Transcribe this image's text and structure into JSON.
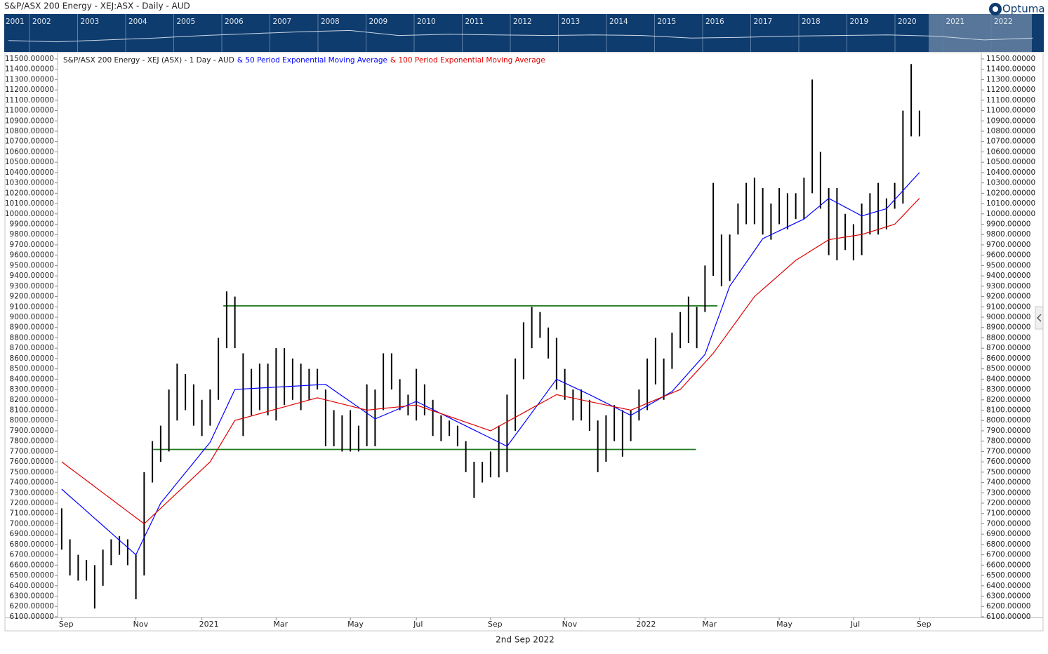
{
  "window_title": "S&P/ASX 200 Energy - XEJ:ASX - Daily - AUD",
  "brand": "Optuma",
  "footer_date": "2nd Sep 2022",
  "navigator": {
    "years": [
      "2001",
      "2002",
      "2003",
      "2004",
      "2005",
      "2006",
      "2007",
      "2008",
      "2009",
      "2010",
      "2011",
      "2012",
      "2013",
      "2014",
      "2015",
      "2016",
      "2017",
      "2018",
      "2019",
      "2020",
      "2021",
      "2022"
    ],
    "values": [
      9000,
      8000,
      9500,
      11000,
      13000,
      14500,
      16000,
      17000,
      13000,
      14000,
      13500,
      13000,
      13500,
      13000,
      11000,
      11500,
      12500,
      13000,
      13500,
      12500,
      9500,
      11000
    ],
    "ylim": [
      0,
      30000
    ]
  },
  "chart_data": {
    "type": "range-bar",
    "categories": [
      "Sep",
      null,
      null,
      null,
      null,
      null,
      null,
      null,
      null,
      "Nov",
      null,
      null,
      null,
      null,
      null,
      null,
      null,
      "2021",
      null,
      null,
      null,
      null,
      null,
      null,
      null,
      null,
      "Mar",
      null,
      null,
      null,
      null,
      null,
      null,
      null,
      null,
      "May",
      null,
      null,
      null,
      null,
      null,
      null,
      null,
      "Jul",
      null,
      null,
      null,
      null,
      null,
      null,
      null,
      null,
      "Sep",
      null,
      null,
      null,
      null,
      null,
      null,
      null,
      null,
      "Nov",
      null,
      null,
      null,
      null,
      null,
      null,
      null,
      null,
      "2022",
      null,
      null,
      null,
      null,
      null,
      null,
      null,
      "Mar",
      null,
      null,
      null,
      null,
      null,
      null,
      null,
      null,
      "May",
      null,
      null,
      null,
      null,
      null,
      null,
      null,
      null,
      "Jul",
      null,
      null,
      null,
      null,
      null,
      null,
      null,
      "Sep",
      null,
      null,
      null,
      null,
      null,
      null,
      null
    ],
    "series": [
      {
        "name": "S&P/ASX 200 Energy - XEJ (ASX) - 1 Day - AUD",
        "color": "#000000",
        "high": [
          7150,
          6850,
          6700,
          6650,
          6600,
          6750,
          6850,
          6880,
          6850,
          6700,
          7500,
          7800,
          7950,
          8300,
          8550,
          8450,
          8350,
          8200,
          8300,
          8800,
          9250,
          9200,
          8650,
          8500,
          8550,
          8550,
          8700,
          8700,
          8600,
          8550,
          8500,
          8500,
          8300,
          8100,
          8050,
          8100,
          7950,
          8350,
          8300,
          8650,
          8650,
          8400,
          8250,
          8500,
          8350,
          8200,
          8050,
          8000,
          7950,
          7800,
          7600,
          7600,
          7700,
          7950,
          8250,
          8600,
          8950,
          9100,
          9050,
          8900,
          8800,
          8500,
          8300,
          8300,
          8200,
          8000,
          8050,
          8150,
          8100,
          8100,
          8300,
          8600,
          8800,
          8600,
          8850,
          9050,
          9200,
          9100,
          9500,
          10300,
          9800,
          9800,
          10100,
          10300,
          10350,
          10250,
          10100,
          10250,
          10200,
          10200,
          10350,
          11300,
          10600,
          10250,
          10250,
          10000,
          9900,
          10100,
          10200,
          10300,
          10150,
          10300,
          11000,
          11450,
          11000,
          null,
          null,
          null,
          null,
          null,
          null,
          null
        ],
        "low": [
          6750,
          6500,
          6450,
          6450,
          6180,
          6400,
          6600,
          6700,
          6600,
          6270,
          6500,
          7400,
          7600,
          7700,
          8000,
          8100,
          7950,
          7850,
          7950,
          8200,
          8700,
          8700,
          7850,
          8050,
          8100,
          8050,
          8000,
          8150,
          8200,
          8100,
          8200,
          8300,
          7750,
          7750,
          7700,
          7700,
          7700,
          7750,
          7750,
          8100,
          8300,
          8100,
          8050,
          8000,
          8050,
          7850,
          7800,
          7850,
          7750,
          7500,
          7250,
          7400,
          7450,
          7450,
          7500,
          7900,
          8400,
          8700,
          8800,
          8600,
          8300,
          8200,
          8000,
          8000,
          7900,
          7500,
          7600,
          7800,
          7650,
          7800,
          8000,
          8100,
          8350,
          8200,
          8500,
          8700,
          8750,
          8700,
          9050,
          9400,
          9300,
          9350,
          9800,
          9900,
          9900,
          9800,
          9750,
          9900,
          9850,
          9950,
          9950,
          10200,
          10050,
          9600,
          9550,
          9650,
          9550,
          9600,
          9800,
          9800,
          9850,
          10050,
          10100,
          10750,
          10750,
          null,
          null,
          null,
          null,
          null,
          null,
          null
        ]
      },
      {
        "name": "& 50 Period Exponential Moving Average",
        "color": "#0000ff",
        "type": "line",
        "values": [
          7336,
          7265,
          7195,
          7124,
          7053,
          6983,
          6912,
          6841,
          6771,
          6700,
          6867,
          7033,
          7200,
          7298,
          7397,
          7495,
          7593,
          7692,
          7790,
          7960,
          8130,
          8300,
          8305,
          8309,
          8314,
          8318,
          8323,
          8327,
          8332,
          8336,
          8341,
          8345,
          8350,
          8294,
          8238,
          8183,
          8127,
          8071,
          8015,
          8049,
          8083,
          8117,
          8151,
          8185,
          8145,
          8106,
          8066,
          8027,
          7987,
          7948,
          7908,
          7869,
          7829,
          7790,
          7750,
          7858,
          7967,
          8075,
          8183,
          8292,
          8400,
          8363,
          8325,
          8288,
          8250,
          8210,
          8170,
          8130,
          8090,
          8050,
          8096,
          8142,
          8188,
          8234,
          8280,
          8370,
          8460,
          8550,
          8640,
          8860,
          9080,
          9300,
          9415,
          9530,
          9645,
          9760,
          9798,
          9836,
          9874,
          9912,
          9950,
          10017,
          10083,
          10150,
          10108,
          10065,
          10023,
          9980,
          10003,
          10027,
          10050,
          10138,
          10225,
          10313,
          10400,
          null,
          null,
          null,
          null,
          null,
          null,
          null
        ]
      },
      {
        "name": "& 100 Period Exponential Moving Average",
        "color": "#e00000",
        "type": "line",
        "values": [
          7600,
          7540,
          7480,
          7420,
          7360,
          7300,
          7240,
          7180,
          7120,
          7060,
          7000,
          7075,
          7150,
          7225,
          7300,
          7375,
          7450,
          7525,
          7600,
          7733,
          7867,
          8000,
          8022,
          8044,
          8066,
          8088,
          8110,
          8132,
          8154,
          8176,
          8198,
          8220,
          8200,
          8180,
          8160,
          8140,
          8120,
          8100,
          8108,
          8117,
          8125,
          8133,
          8142,
          8150,
          8122,
          8094,
          8067,
          8039,
          8011,
          7983,
          7956,
          7928,
          7900,
          7944,
          7988,
          8031,
          8075,
          8119,
          8163,
          8206,
          8250,
          8233,
          8217,
          8200,
          8183,
          8167,
          8150,
          8133,
          8117,
          8100,
          8133,
          8167,
          8200,
          8233,
          8267,
          8300,
          8388,
          8475,
          8563,
          8650,
          8760,
          8870,
          8980,
          9090,
          9200,
          9270,
          9340,
          9410,
          9480,
          9550,
          9600,
          9650,
          9700,
          9750,
          9763,
          9775,
          9788,
          9800,
          9825,
          9850,
          9875,
          9900,
          9983,
          10067,
          10150,
          null,
          null,
          null,
          null,
          null,
          null,
          null
        ]
      }
    ],
    "levels": [
      {
        "value": 9110,
        "color": "#1e7a1e"
      },
      {
        "value": 7720,
        "color": "#1e7a1e"
      }
    ],
    "ylim": [
      6093,
      11554
    ],
    "yticks": [
      {
        "value": 6100,
        "label": "6100.00000"
      },
      {
        "value": 6200,
        "label": "6200.00000"
      },
      {
        "value": 6300,
        "label": "6300.00000"
      },
      {
        "value": 6400,
        "label": "6400.00000"
      },
      {
        "value": 6500,
        "label": "6500.00000"
      },
      {
        "value": 6600,
        "label": "6600.00000"
      },
      {
        "value": 6700,
        "label": "6700.00000"
      },
      {
        "value": 6800,
        "label": "6800.00000"
      },
      {
        "value": 6900,
        "label": "6900.00000"
      },
      {
        "value": 7000,
        "label": "7000.00000"
      },
      {
        "value": 7100,
        "label": "7100.00000"
      },
      {
        "value": 7200,
        "label": "7200.00000"
      },
      {
        "value": 7300,
        "label": "7300.00000"
      },
      {
        "value": 7400,
        "label": "7400.00000"
      },
      {
        "value": 7500,
        "label": "7500.00000"
      },
      {
        "value": 7600,
        "label": "7600.00000"
      },
      {
        "value": 7700,
        "label": "7700.00000"
      },
      {
        "value": 7800,
        "label": "7800.00000"
      },
      {
        "value": 7900,
        "label": "7900.00000"
      },
      {
        "value": 8000,
        "label": "8000.00000"
      },
      {
        "value": 8100,
        "label": "8100.00000"
      },
      {
        "value": 8200,
        "label": "8200.00000"
      },
      {
        "value": 8300,
        "label": "8300.00000"
      },
      {
        "value": 8400,
        "label": "8400.00000"
      },
      {
        "value": 8500,
        "label": "8500.00000"
      },
      {
        "value": 8600,
        "label": "8600.00000"
      },
      {
        "value": 8700,
        "label": "8700.00000"
      },
      {
        "value": 8800,
        "label": "8800.00000"
      },
      {
        "value": 8900,
        "label": "8900.00000"
      },
      {
        "value": 9000,
        "label": "9000.00000"
      },
      {
        "value": 9100,
        "label": "9100.00000"
      },
      {
        "value": 9200,
        "label": "9200.00000"
      },
      {
        "value": 9300,
        "label": "9300.00000"
      },
      {
        "value": 9400,
        "label": "9400.00000"
      },
      {
        "value": 9500,
        "label": "9500.00000"
      },
      {
        "value": 9600,
        "label": "9600.00000"
      },
      {
        "value": 9700,
        "label": "9700.00000"
      },
      {
        "value": 9800,
        "label": "9800.00000"
      },
      {
        "value": 9900,
        "label": "9900.00000"
      },
      {
        "value": 10000,
        "label": "10000.00000"
      },
      {
        "value": 10100,
        "label": "10100.00000"
      },
      {
        "value": 10200,
        "label": "10200.00000"
      },
      {
        "value": 10300,
        "label": "10300.00000"
      },
      {
        "value": 10400,
        "label": "10400.00000"
      },
      {
        "value": 10500,
        "label": "10500.00000"
      },
      {
        "value": 10600,
        "label": "10600.00000"
      },
      {
        "value": 10700,
        "label": "10700.00000"
      },
      {
        "value": 10800,
        "label": "10800.00000"
      },
      {
        "value": 10900,
        "label": "10900.00000"
      },
      {
        "value": 11000,
        "label": "11000.00000"
      },
      {
        "value": 11100,
        "label": "11100.00000"
      },
      {
        "value": 11200,
        "label": "11200.00000"
      },
      {
        "value": 11300,
        "label": "11300.00000"
      },
      {
        "value": 11400,
        "label": "11400.00000"
      },
      {
        "value": 11500,
        "label": "11500.00000"
      }
    ],
    "grid": false
  }
}
